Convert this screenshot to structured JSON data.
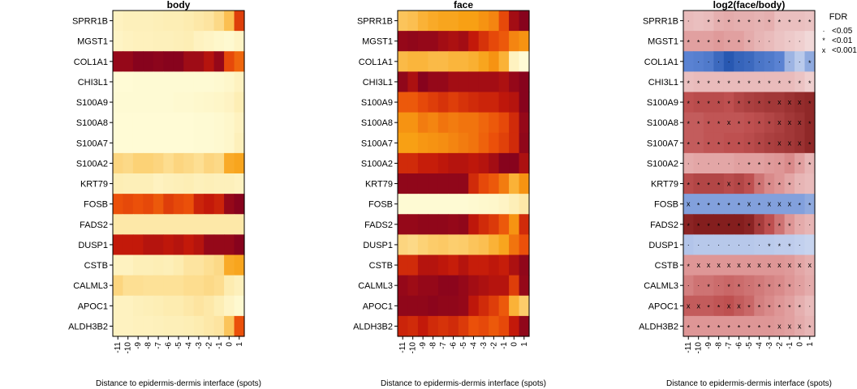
{
  "chart_data": {
    "type": "heatmap",
    "genes": [
      "SPRR1B",
      "MGST1",
      "COL1A1",
      "CHI3L1",
      "S100A9",
      "S100A8",
      "S100A7",
      "S100A2",
      "KRT79",
      "FOSB",
      "FADS2",
      "DUSP1",
      "CSTB",
      "CALML3",
      "APOC1",
      "ALDH3B2"
    ],
    "x": [
      "-11",
      "-10",
      "-9",
      "-8",
      "-7",
      "-6",
      "-5",
      "-4",
      "-3",
      "-2",
      "-1",
      "0",
      "1"
    ],
    "xlabel": "Distance to epidermis-dermis interface (spots)",
    "panels": [
      {
        "title": "body",
        "palette": "heat",
        "values": [
          [
            0.12,
            0.14,
            0.14,
            0.14,
            0.15,
            0.16,
            0.16,
            0.18,
            0.2,
            0.22,
            0.28,
            0.4,
            0.75
          ],
          [
            0.1,
            0.12,
            0.13,
            0.13,
            0.14,
            0.14,
            0.15,
            0.16,
            0.12,
            0.1,
            0.08,
            0.06,
            0.1
          ],
          [
            0.95,
            0.95,
            0.98,
            0.98,
            0.97,
            0.98,
            0.98,
            0.93,
            0.93,
            0.88,
            0.95,
            0.72,
            0.65
          ],
          [
            0.04,
            0.04,
            0.05,
            0.05,
            0.05,
            0.05,
            0.05,
            0.05,
            0.05,
            0.05,
            0.06,
            0.08,
            0.12
          ],
          [
            0.05,
            0.05,
            0.05,
            0.05,
            0.05,
            0.05,
            0.06,
            0.06,
            0.07,
            0.08,
            0.09,
            0.11,
            0.16
          ],
          [
            0.04,
            0.04,
            0.04,
            0.04,
            0.04,
            0.04,
            0.04,
            0.04,
            0.05,
            0.05,
            0.06,
            0.08,
            0.12
          ],
          [
            0.04,
            0.04,
            0.04,
            0.04,
            0.04,
            0.04,
            0.04,
            0.04,
            0.05,
            0.05,
            0.06,
            0.08,
            0.14
          ],
          [
            0.3,
            0.28,
            0.32,
            0.32,
            0.3,
            0.26,
            0.3,
            0.28,
            0.25,
            0.3,
            0.28,
            0.48,
            0.5
          ],
          [
            0.16,
            0.15,
            0.15,
            0.15,
            0.12,
            0.14,
            0.15,
            0.16,
            0.14,
            0.15,
            0.14,
            0.14,
            0.12
          ],
          [
            0.7,
            0.72,
            0.7,
            0.72,
            0.68,
            0.75,
            0.72,
            0.7,
            0.82,
            0.85,
            0.82,
            0.95,
            0.98
          ],
          [
            0.2,
            0.2,
            0.2,
            0.2,
            0.2,
            0.2,
            0.2,
            0.2,
            0.2,
            0.2,
            0.2,
            0.2,
            0.2
          ],
          [
            0.85,
            0.85,
            0.85,
            0.88,
            0.88,
            0.86,
            0.88,
            0.85,
            0.88,
            0.95,
            0.95,
            0.95,
            0.98
          ],
          [
            0.12,
            0.12,
            0.15,
            0.15,
            0.16,
            0.15,
            0.18,
            0.22,
            0.22,
            0.25,
            0.28,
            0.48,
            0.5
          ],
          [
            0.3,
            0.25,
            0.25,
            0.24,
            0.24,
            0.24,
            0.24,
            0.26,
            0.26,
            0.28,
            0.26,
            0.18,
            0.14
          ],
          [
            0.12,
            0.12,
            0.14,
            0.15,
            0.16,
            0.18,
            0.18,
            0.2,
            0.22,
            0.2,
            0.16,
            0.1,
            0.06
          ],
          [
            0.12,
            0.12,
            0.13,
            0.13,
            0.14,
            0.15,
            0.15,
            0.16,
            0.18,
            0.2,
            0.22,
            0.38,
            0.7
          ]
        ]
      },
      {
        "title": "face",
        "palette": "heat",
        "values": [
          [
            0.38,
            0.4,
            0.45,
            0.48,
            0.5,
            0.5,
            0.52,
            0.52,
            0.55,
            0.58,
            0.72,
            0.92,
            0.98
          ],
          [
            0.95,
            0.96,
            0.95,
            0.95,
            0.92,
            0.9,
            0.92,
            0.85,
            0.78,
            0.72,
            0.68,
            0.58,
            0.55
          ],
          [
            0.42,
            0.44,
            0.44,
            0.42,
            0.42,
            0.44,
            0.44,
            0.46,
            0.5,
            0.55,
            0.45,
            0.12,
            0.04
          ],
          [
            0.96,
            0.9,
            0.98,
            0.95,
            0.95,
            0.92,
            0.92,
            0.92,
            0.92,
            0.92,
            0.9,
            0.95,
            0.98
          ],
          [
            0.68,
            0.68,
            0.72,
            0.75,
            0.78,
            0.75,
            0.78,
            0.8,
            0.82,
            0.82,
            0.86,
            0.88,
            0.98
          ],
          [
            0.55,
            0.55,
            0.6,
            0.58,
            0.62,
            0.6,
            0.62,
            0.62,
            0.65,
            0.68,
            0.72,
            0.8,
            0.95
          ],
          [
            0.52,
            0.52,
            0.54,
            0.55,
            0.56,
            0.58,
            0.6,
            0.62,
            0.66,
            0.7,
            0.74,
            0.8,
            0.96
          ],
          [
            0.8,
            0.8,
            0.84,
            0.84,
            0.86,
            0.88,
            0.88,
            0.86,
            0.88,
            0.92,
            0.98,
            0.98,
            0.9
          ],
          [
            0.96,
            0.96,
            0.96,
            0.96,
            0.96,
            0.96,
            0.96,
            0.8,
            0.72,
            0.68,
            0.6,
            0.45,
            0.55
          ],
          [
            0.05,
            0.05,
            0.05,
            0.05,
            0.05,
            0.05,
            0.05,
            0.06,
            0.07,
            0.08,
            0.1,
            0.15,
            0.2
          ],
          [
            0.95,
            0.95,
            0.96,
            0.96,
            0.96,
            0.95,
            0.96,
            0.86,
            0.8,
            0.76,
            0.68,
            0.55,
            0.8
          ],
          [
            0.3,
            0.28,
            0.32,
            0.35,
            0.36,
            0.34,
            0.35,
            0.38,
            0.4,
            0.45,
            0.5,
            0.62,
            0.7
          ],
          [
            0.8,
            0.8,
            0.88,
            0.88,
            0.86,
            0.84,
            0.88,
            0.84,
            0.84,
            0.86,
            0.84,
            0.9,
            0.96
          ],
          [
            0.95,
            0.93,
            0.95,
            0.95,
            0.97,
            0.97,
            0.95,
            0.92,
            0.9,
            0.88,
            0.88,
            0.75,
            0.95
          ],
          [
            0.96,
            0.96,
            0.96,
            0.97,
            0.96,
            0.96,
            0.95,
            0.86,
            0.8,
            0.75,
            0.68,
            0.45,
            0.35
          ],
          [
            0.82,
            0.8,
            0.85,
            0.8,
            0.78,
            0.8,
            0.76,
            0.7,
            0.72,
            0.68,
            0.72,
            0.85,
            0.96
          ]
        ]
      },
      {
        "title": "log2(face/body)",
        "palette": "diverging",
        "values": [
          [
            0.22,
            0.2,
            0.22,
            0.28,
            0.3,
            0.28,
            0.28,
            0.26,
            0.28,
            0.2,
            0.2,
            0.2,
            0.18
          ],
          [
            0.35,
            0.35,
            0.35,
            0.38,
            0.35,
            0.35,
            0.3,
            0.25,
            0.22,
            0.18,
            0.15,
            0.12,
            0.08
          ],
          [
            -0.7,
            -0.72,
            -0.75,
            -0.85,
            -0.95,
            -0.88,
            -0.85,
            -0.78,
            -0.75,
            -0.7,
            -0.45,
            -0.3,
            -0.5
          ],
          [
            0.2,
            0.22,
            0.22,
            0.22,
            0.22,
            0.22,
            0.22,
            0.22,
            0.22,
            0.22,
            0.22,
            0.18,
            0.12
          ],
          [
            0.7,
            0.72,
            0.72,
            0.72,
            0.7,
            0.75,
            0.78,
            0.8,
            0.82,
            0.82,
            0.85,
            0.88,
            0.9
          ],
          [
            0.65,
            0.65,
            0.68,
            0.68,
            0.68,
            0.68,
            0.7,
            0.72,
            0.75,
            0.78,
            0.82,
            0.85,
            0.9
          ],
          [
            0.65,
            0.65,
            0.68,
            0.68,
            0.7,
            0.7,
            0.72,
            0.75,
            0.78,
            0.8,
            0.82,
            0.85,
            0.9
          ],
          [
            0.3,
            0.32,
            0.32,
            0.32,
            0.32,
            0.35,
            0.35,
            0.35,
            0.38,
            0.4,
            0.45,
            0.35,
            0.25
          ],
          [
            0.72,
            0.75,
            0.75,
            0.75,
            0.72,
            0.75,
            0.7,
            0.55,
            0.45,
            0.4,
            0.32,
            0.25,
            0.22
          ],
          [
            -0.55,
            -0.55,
            -0.55,
            -0.55,
            -0.55,
            -0.55,
            -0.55,
            -0.55,
            -0.55,
            -0.55,
            -0.55,
            -0.55,
            -0.5
          ],
          [
            0.92,
            0.95,
            0.95,
            0.95,
            0.95,
            0.95,
            0.92,
            0.8,
            0.7,
            0.55,
            0.4,
            0.3,
            0.25
          ],
          [
            -0.35,
            -0.32,
            -0.32,
            -0.32,
            -0.32,
            -0.32,
            -0.32,
            -0.3,
            -0.3,
            -0.28,
            -0.28,
            -0.25,
            -0.22
          ],
          [
            0.4,
            0.4,
            0.4,
            0.4,
            0.4,
            0.4,
            0.4,
            0.4,
            0.4,
            0.4,
            0.38,
            0.32,
            0.28
          ],
          [
            0.5,
            0.55,
            0.55,
            0.58,
            0.6,
            0.58,
            0.55,
            0.52,
            0.48,
            0.45,
            0.4,
            0.35,
            0.3
          ],
          [
            0.65,
            0.65,
            0.65,
            0.68,
            0.7,
            0.65,
            0.6,
            0.5,
            0.45,
            0.4,
            0.35,
            0.28,
            0.22
          ],
          [
            0.4,
            0.4,
            0.4,
            0.4,
            0.4,
            0.4,
            0.4,
            0.4,
            0.4,
            0.38,
            0.35,
            0.3,
            0.25
          ]
        ],
        "fdr": [
          [
            "dot",
            null,
            "star",
            "star",
            "star",
            "star",
            "star",
            "star",
            "star",
            "star",
            "star",
            "star",
            "star"
          ],
          [
            "star",
            "star",
            "star",
            "star",
            "star",
            "star",
            "star",
            "dot",
            "dot",
            null,
            "dot",
            "dot",
            null
          ],
          [
            null,
            "dot",
            "dot",
            "dot",
            "dot",
            "dot",
            "dot",
            "dot",
            "dot",
            "dot",
            "dot",
            "dot",
            "star"
          ],
          [
            "star",
            "star",
            "star",
            "star",
            "star",
            "star",
            "star",
            "star",
            "star",
            "star",
            "star",
            "star",
            "star"
          ],
          [
            "star",
            "star",
            "star",
            "star",
            "star",
            "star",
            "star",
            "star",
            "star",
            "x",
            "x",
            "x",
            "star"
          ],
          [
            "star",
            "star",
            "star",
            "star",
            "x",
            "star",
            "star",
            "star",
            "star",
            "x",
            "x",
            "x",
            "star"
          ],
          [
            "star",
            "star",
            "star",
            "star",
            "star",
            "star",
            "star",
            "star",
            "star",
            "x",
            "x",
            "x",
            "star"
          ],
          [
            "dot",
            "dot",
            "dot",
            "dot",
            "dot",
            "dot",
            "star",
            "star",
            "star",
            "star",
            "star",
            "star",
            "star"
          ],
          [
            "star",
            "star",
            "star",
            "star",
            "x",
            "star",
            "star",
            "star",
            "star",
            "star",
            "star",
            "dot",
            null
          ],
          [
            "x",
            "star",
            "star",
            "star",
            "star",
            "star",
            "x",
            "star",
            "x",
            "x",
            "x",
            "star",
            "star"
          ],
          [
            "star",
            "star",
            "star",
            "star",
            "star",
            "star",
            "star",
            "star",
            "star",
            "star",
            "star",
            "dot",
            "dot"
          ],
          [
            "dot",
            "dot",
            "dot",
            "dot",
            "dot",
            "dot",
            "dot",
            "dot",
            "star",
            "star",
            "star",
            "dot",
            null
          ],
          [
            "star",
            "x",
            "x",
            "x",
            "x",
            "x",
            "x",
            "x",
            "x",
            "x",
            "x",
            "x",
            "x"
          ],
          [
            "dot",
            "dot",
            "star",
            "dot",
            "star",
            "star",
            "dot",
            "star",
            "star",
            "star",
            "star",
            "dot",
            "dot"
          ],
          [
            "x",
            "x",
            "star",
            "star",
            "x",
            "x",
            "star",
            "star",
            "star",
            "star",
            "star",
            "star",
            "dot"
          ],
          [
            "star",
            "star",
            "star",
            "star",
            "star",
            "star",
            "star",
            "star",
            "star",
            "x",
            "x",
            "x",
            "star"
          ]
        ]
      }
    ],
    "legend": {
      "title": "FDR",
      "entries": [
        {
          "symbol": "dot",
          "label": "<0.05"
        },
        {
          "symbol": "star",
          "label": "<0.01"
        },
        {
          "symbol": "x",
          "label": "<0.001"
        }
      ]
    }
  }
}
